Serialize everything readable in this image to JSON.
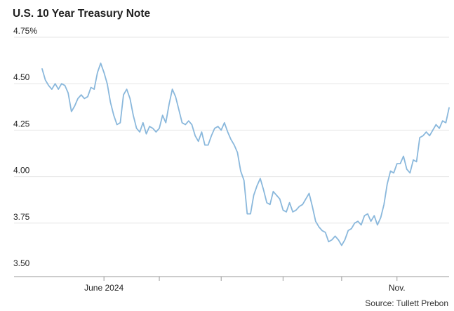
{
  "chart_data": {
    "type": "line",
    "title": "U.S. 10 Year Treasury Note",
    "source": "Source: Tullett Prebon",
    "xlabel": "",
    "ylabel": "",
    "ylim": [
      3.5,
      4.75
    ],
    "y_ticks": [
      {
        "value": 4.75,
        "label": "4.75%"
      },
      {
        "value": 4.5,
        "label": "4.50"
      },
      {
        "value": 4.25,
        "label": "4.25"
      },
      {
        "value": 4.0,
        "label": "4.00"
      },
      {
        "value": 3.75,
        "label": "3.75"
      },
      {
        "value": 3.5,
        "label": "3.50"
      }
    ],
    "x_ticks": [
      {
        "index": 19,
        "label": "June 2024"
      },
      {
        "index": 36,
        "label": ""
      },
      {
        "index": 55,
        "label": ""
      },
      {
        "index": 74,
        "label": ""
      },
      {
        "index": 92,
        "label": ""
      },
      {
        "index": 109,
        "label": "Nov."
      }
    ],
    "grid": true,
    "line_color": "#8ab8dc",
    "series": [
      {
        "name": "",
        "values": [
          4.58,
          4.52,
          4.49,
          4.47,
          4.5,
          4.47,
          4.5,
          4.49,
          4.45,
          4.35,
          4.38,
          4.42,
          4.44,
          4.42,
          4.43,
          4.48,
          4.47,
          4.56,
          4.61,
          4.56,
          4.5,
          4.4,
          4.33,
          4.28,
          4.29,
          4.44,
          4.47,
          4.42,
          4.33,
          4.26,
          4.24,
          4.29,
          4.23,
          4.27,
          4.26,
          4.24,
          4.26,
          4.33,
          4.29,
          4.39,
          4.47,
          4.43,
          4.36,
          4.29,
          4.28,
          4.3,
          4.28,
          4.22,
          4.19,
          4.24,
          4.17,
          4.17,
          4.22,
          4.26,
          4.27,
          4.25,
          4.29,
          4.24,
          4.2,
          4.17,
          4.13,
          4.03,
          3.98,
          3.8,
          3.8,
          3.9,
          3.95,
          3.99,
          3.93,
          3.86,
          3.85,
          3.92,
          3.9,
          3.88,
          3.82,
          3.81,
          3.86,
          3.81,
          3.82,
          3.84,
          3.85,
          3.88,
          3.91,
          3.84,
          3.76,
          3.73,
          3.71,
          3.7,
          3.65,
          3.66,
          3.68,
          3.66,
          3.63,
          3.66,
          3.71,
          3.72,
          3.75,
          3.76,
          3.74,
          3.79,
          3.8,
          3.76,
          3.79,
          3.74,
          3.78,
          3.85,
          3.96,
          4.03,
          4.02,
          4.07,
          4.07,
          4.11,
          4.04,
          4.02,
          4.09,
          4.08,
          4.21,
          4.22,
          4.24,
          4.22,
          4.25,
          4.28,
          4.26,
          4.3,
          4.29,
          4.37
        ]
      }
    ]
  }
}
